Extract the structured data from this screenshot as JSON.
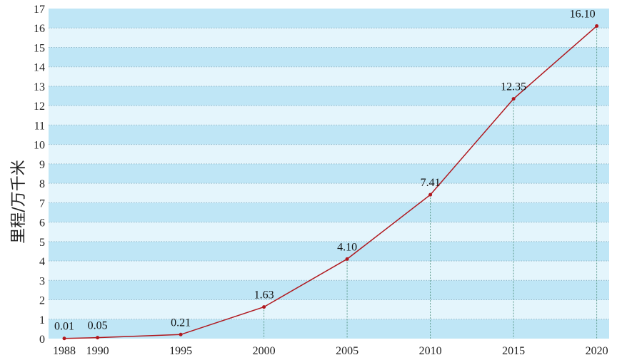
{
  "chart_data": {
    "type": "line",
    "title": "",
    "xlabel": "",
    "ylabel": "里程/万千米",
    "x": [
      1988,
      1990,
      1995,
      2000,
      2005,
      2010,
      2015,
      2020
    ],
    "x_tick_labels": [
      "1988",
      "1990",
      "1995",
      "2000",
      "2005",
      "2010",
      "2015",
      "2020"
    ],
    "series": [
      {
        "name": "里程",
        "values": [
          0.01,
          0.05,
          0.21,
          1.63,
          4.1,
          7.41,
          12.35,
          16.1
        ],
        "labels": [
          "0.01",
          "0.05",
          "0.21",
          "1.63",
          "4.10",
          "7.41",
          "12.35",
          "16.10"
        ]
      }
    ],
    "ylim": [
      0,
      17
    ],
    "y_ticks": [
      "0",
      "1",
      "2",
      "3",
      "4",
      "5",
      "6",
      "7",
      "8",
      "9",
      "10",
      "11",
      "12",
      "13",
      "14",
      "15",
      "16",
      "17"
    ],
    "grid": true,
    "colors": {
      "line": "#b0181e",
      "band_dark": "#bfe6f6",
      "band_light": "#e4f5fc",
      "grid": "#8fb6c8",
      "drop_line": "#5a9a8a"
    }
  }
}
